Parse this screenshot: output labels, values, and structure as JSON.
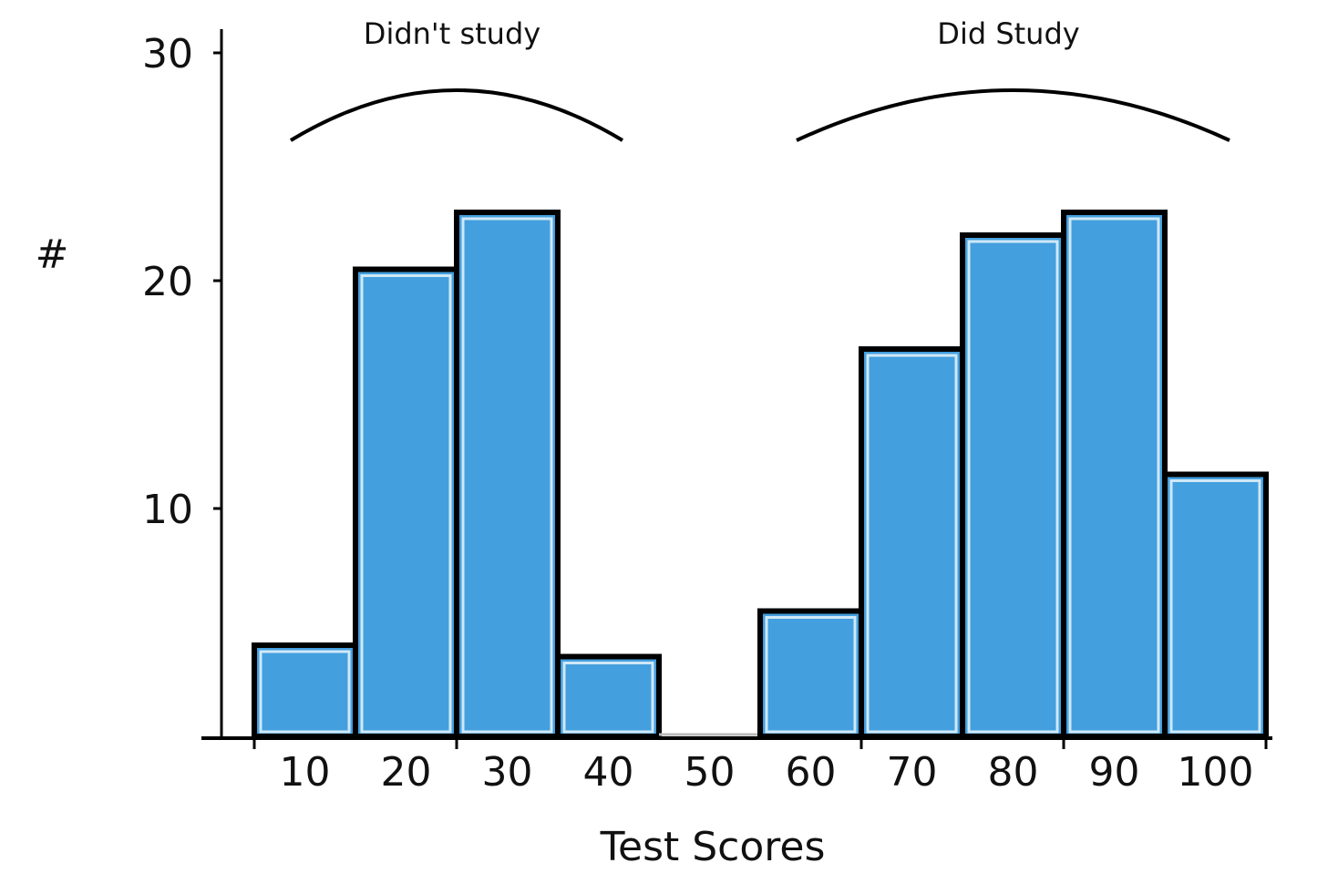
{
  "chart_data": {
    "type": "bar",
    "xlabel": "Test Scores",
    "ylabel": "#",
    "ylim": [
      0,
      30
    ],
    "yticks": [
      10,
      20,
      30
    ],
    "categories": [
      "10",
      "20",
      "30",
      "40",
      "50",
      "60",
      "70",
      "80",
      "90",
      "100"
    ],
    "values": [
      4,
      20.5,
      23,
      3.5,
      0,
      5.5,
      17,
      22,
      23,
      11.5
    ],
    "annotations": [
      {
        "text": "Didn't study",
        "from": "10",
        "to": "40"
      },
      {
        "text": "Did Study",
        "from": "60",
        "to": "100"
      }
    ],
    "grid": false,
    "colors": {
      "bar_fill": "#449fde",
      "bar_edge": "#000000",
      "bar_highlight": "#cfe8f7"
    }
  }
}
